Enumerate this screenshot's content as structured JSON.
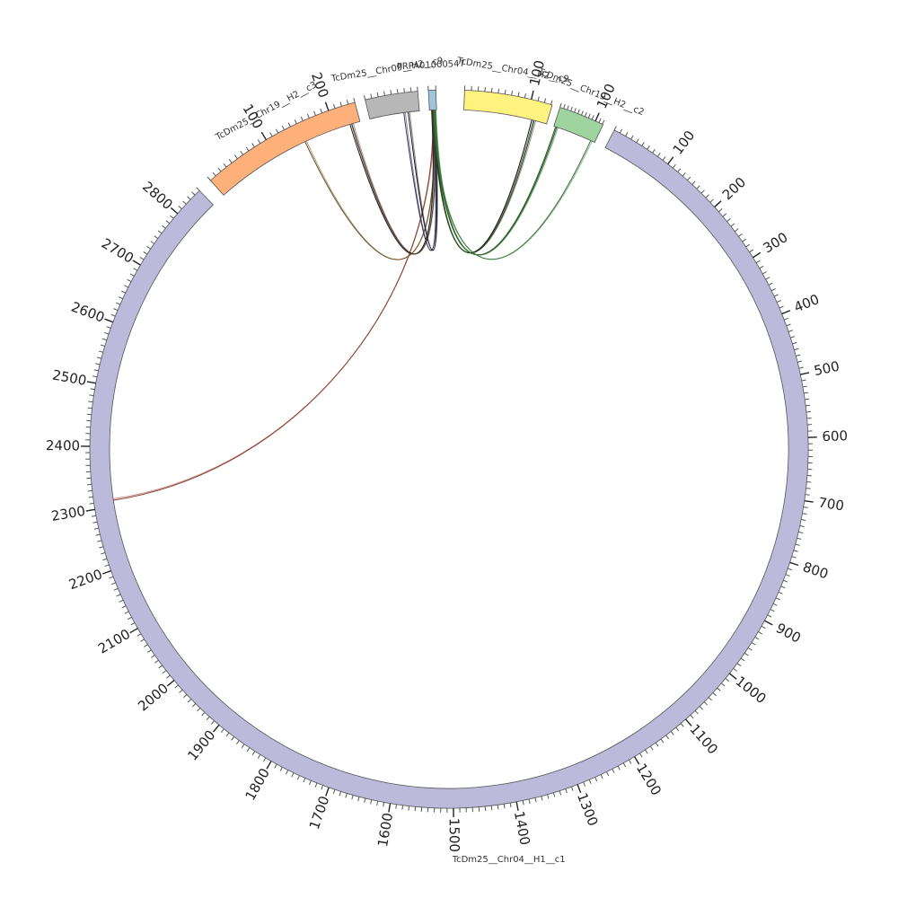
{
  "segments": [
    {
      "id": "c1",
      "name": "TcDm25__Chr04__H1__c1",
      "length": 2850,
      "color": "#bcbadb",
      "tickLabels": true
    },
    {
      "id": "c3",
      "name": "TcDm25__Chr19__H2__c3",
      "length": 240,
      "color": "#fdb07a",
      "tickLabels": true
    },
    {
      "id": "c9b",
      "name": "TcDm25__Chr09__H2__c9",
      "length": 80,
      "color": "#b7b7b7",
      "tickLabels": false
    },
    {
      "id": "pp",
      "name": "PRPA01000547",
      "length": 10,
      "color": "#9fc4dc",
      "tickLabels": false
    },
    {
      "id": "c9",
      "name": "TcDm25__Chr04__H2__c9",
      "length": 132,
      "color": "#fff27f",
      "tickLabels": true
    },
    {
      "id": "c2",
      "name": "TcDm25__Chr19__H2__c2",
      "length": 122,
      "color": "#9fd49f",
      "tickLabels": true
    }
  ],
  "links": [
    {
      "from": "c1",
      "from_pos": 2310,
      "to": "pp",
      "to_pos": 4,
      "color": "#8b3a2a"
    },
    {
      "from": "c3",
      "from_pos": 150,
      "to": "pp",
      "to_pos": 5,
      "color": "#6b4f1d"
    },
    {
      "from": "c3",
      "from_pos": 224,
      "to": "pp",
      "to_pos": 3,
      "color": "#222222"
    },
    {
      "from": "c3",
      "from_pos": 227,
      "to": "pp",
      "to_pos": 6,
      "color": "#5a3a2a"
    },
    {
      "from": "c9b",
      "from_pos": 55,
      "to": "pp",
      "to_pos": 5,
      "color": "#333366"
    },
    {
      "from": "c9b",
      "from_pos": 62,
      "to": "pp",
      "to_pos": 7,
      "color": "#1a1a1a"
    },
    {
      "from": "c9",
      "from_pos": 108,
      "to": "pp",
      "to_pos": 6,
      "color": "#111111"
    },
    {
      "from": "c9",
      "from_pos": 112,
      "to": "pp",
      "to_pos": 5,
      "color": "#2a4a1a"
    },
    {
      "from": "c2",
      "from_pos": 5,
      "to": "pp",
      "to_pos": 7,
      "color": "#1f5a1f"
    },
    {
      "from": "c2",
      "from_pos": 8,
      "to": "pp",
      "to_pos": 8,
      "color": "#2f6a2f"
    },
    {
      "from": "c2",
      "from_pos": 110,
      "to": "pp",
      "to_pos": 6,
      "color": "#3a7a3a"
    }
  ]
}
